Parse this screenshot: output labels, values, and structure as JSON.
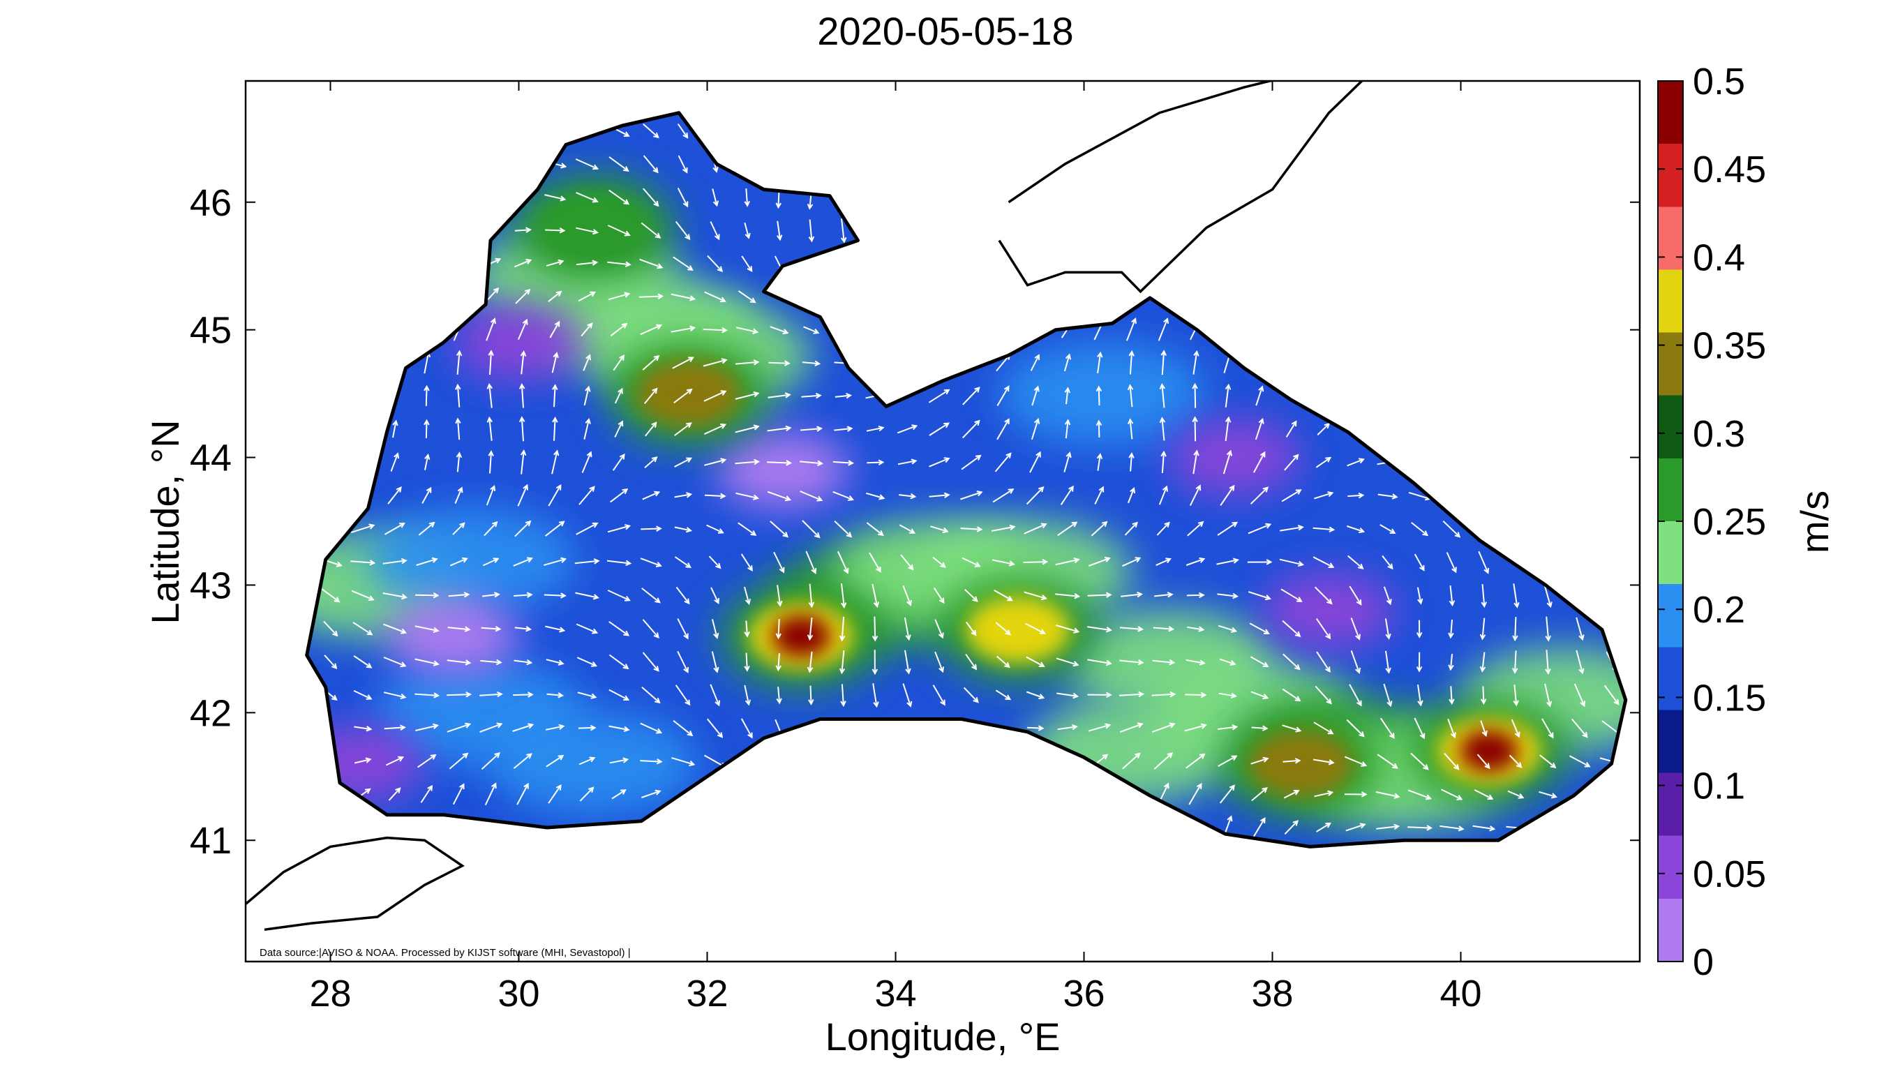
{
  "chart_data": {
    "type": "heatmap",
    "title": "2020-05-05-18",
    "xlabel": "Longitude, °E",
    "ylabel": "Latitude, °N",
    "xlim": [
      27.1,
      41.9
    ],
    "ylim": [
      40.05,
      46.95
    ],
    "x_ticks": [
      "28",
      "30",
      "32",
      "34",
      "36",
      "38",
      "40"
    ],
    "y_ticks": [
      "41",
      "42",
      "43",
      "44",
      "45",
      "46"
    ],
    "colorbar": {
      "label": "m/s",
      "range": [
        0,
        0.5
      ],
      "ticks": [
        "0",
        "0.05",
        "0.1",
        "0.15",
        "0.2",
        "0.25",
        "0.3",
        "0.35",
        "0.4",
        "0.45",
        "0.5"
      ],
      "colors": [
        "#b07bf0",
        "#8b45d8",
        "#5a1ea8",
        "#0a1a8a",
        "#1e50d8",
        "#2a8ff0",
        "#7fe07f",
        "#2a9a2a",
        "#0f5a14",
        "#8a7a10",
        "#e2d410",
        "#f86b6b",
        "#d42020",
        "#8a0000"
      ]
    },
    "source_note": "Data source:|AVISO & NOAA. Processed by KIJST software (MHI, Sevastopol)  |",
    "speed_maxima": [
      {
        "lon": 33.0,
        "lat": 42.6,
        "speed": 0.5
      },
      {
        "lon": 40.3,
        "lat": 41.7,
        "speed": 0.5
      },
      {
        "lon": 35.3,
        "lat": 42.65,
        "speed": 0.38
      },
      {
        "lon": 31.8,
        "lat": 44.5,
        "speed": 0.33
      },
      {
        "lon": 30.8,
        "lat": 45.8,
        "speed": 0.28
      },
      {
        "lon": 38.3,
        "lat": 41.6,
        "speed": 0.35
      }
    ],
    "speed_minima": [
      {
        "lon": 29.3,
        "lat": 42.6,
        "speed": 0.03
      },
      {
        "lon": 32.8,
        "lat": 43.9,
        "speed": 0.02
      },
      {
        "lon": 30.0,
        "lat": 44.9,
        "speed": 0.05
      },
      {
        "lon": 37.6,
        "lat": 44.0,
        "speed": 0.06
      },
      {
        "lon": 38.6,
        "lat": 42.8,
        "speed": 0.07
      },
      {
        "lon": 28.3,
        "lat": 41.6,
        "speed": 0.05
      }
    ]
  }
}
